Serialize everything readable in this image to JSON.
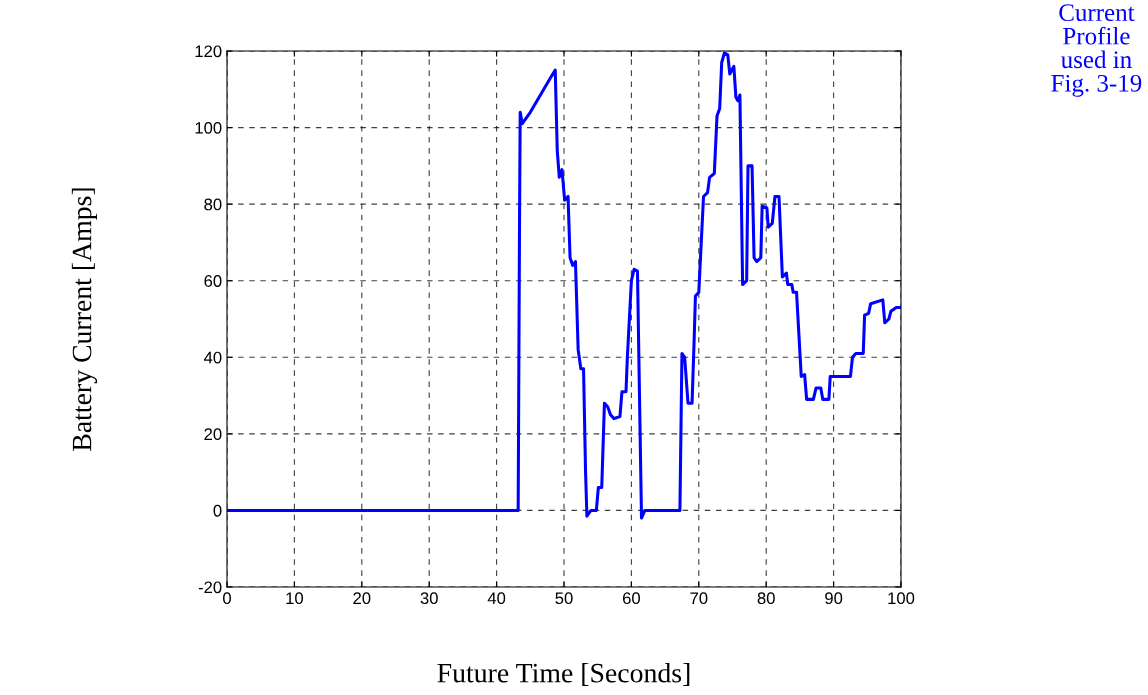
{
  "chart_data": {
    "type": "line",
    "xlabel": "Future Time [Seconds]",
    "ylabel": "Battery Current [Amps]",
    "annotations": [
      "Current\nProfile\nused in\nFig. 3-19"
    ],
    "xlim": [
      0,
      100
    ],
    "xticks": [
      0,
      10,
      20,
      30,
      40,
      50,
      60,
      70,
      80,
      90,
      100
    ],
    "ylim": [
      -20,
      120
    ],
    "yticks": [
      -20,
      0,
      20,
      40,
      60,
      80,
      100,
      120
    ],
    "grid": true,
    "line_style": "solid",
    "marker": "none",
    "series": [
      {
        "color": "#0000ff",
        "x": [
          0,
          43.2,
          43.4,
          43.5,
          43.8,
          45,
          46,
          47,
          48,
          48.7,
          49.0,
          49.3,
          49.7,
          50.1,
          50.6,
          50.9,
          51.3,
          51.7,
          52.1,
          52.5,
          52.9,
          53.2,
          53.4,
          54,
          54.8,
          55.1,
          55.6,
          56.0,
          56.5,
          56.9,
          57.4,
          58.3,
          58.6,
          59.2,
          59.4,
          60.0,
          60.4,
          60.9,
          61.2,
          61.5,
          62.0,
          67.2,
          67.5,
          67.9,
          68.4,
          69.0,
          69.3,
          69.5,
          70.0,
          70.7,
          71.3,
          71.6,
          72.3,
          72.7,
          73.1,
          73.4,
          73.8,
          74.3,
          74.6,
          75.2,
          75.5,
          75.8,
          76.1,
          76.5,
          77.1,
          77.3,
          77.9,
          78.2,
          78.6,
          79.2,
          79.4,
          80.1,
          80.3,
          80.9,
          81.3,
          81.9,
          82.4,
          83.0,
          83.2,
          83.8,
          84.0,
          84.5,
          85.2,
          85.7,
          86.0,
          87.0,
          87.4,
          88.1,
          88.4,
          89.3,
          89.5,
          92.5,
          92.8,
          93.3,
          94.4,
          94.6,
          95.2,
          95.5,
          97.3,
          97.6,
          98.2,
          98.5,
          99.3,
          100
        ],
        "values": [
          0,
          0,
          75,
          104,
          101,
          104,
          107,
          110,
          113,
          115,
          94,
          87,
          89,
          81,
          82,
          66,
          64,
          65,
          42,
          37,
          37,
          10,
          -1.5,
          0,
          0,
          6,
          6,
          28,
          27,
          25,
          24,
          24.5,
          31,
          31,
          40,
          60,
          63,
          62.5,
          30,
          -2,
          0,
          0,
          41,
          40,
          28,
          28,
          44,
          56,
          57,
          82,
          83,
          87,
          88,
          103,
          105,
          117,
          119.5,
          119,
          114,
          116,
          108,
          107,
          108.5,
          59,
          60,
          90,
          90,
          66,
          65,
          66,
          79.5,
          79,
          74,
          75,
          82,
          82,
          61,
          62,
          59,
          59,
          57,
          57,
          35,
          35.5,
          29,
          29,
          32,
          32,
          29,
          29,
          35,
          35,
          40,
          41,
          41,
          51,
          51.5,
          54,
          55,
          49,
          50,
          52,
          53,
          53
        ]
      }
    ]
  }
}
